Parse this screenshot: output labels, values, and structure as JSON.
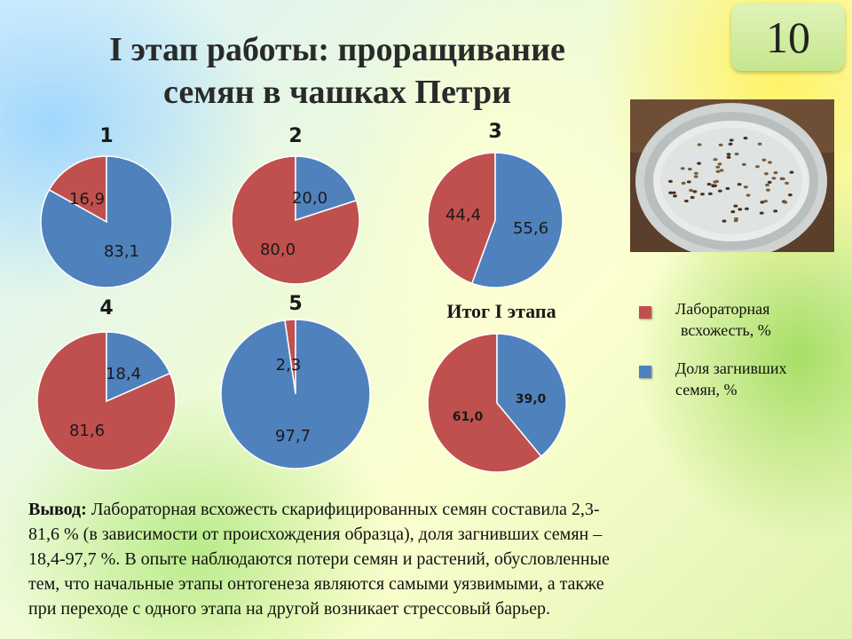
{
  "slide": {
    "title_line1": "I этап работы: проращивание",
    "title_line2": "семян в чашках Петри",
    "number": "10",
    "legend": [
      {
        "label_line1": "Лабораторная",
        "label_line2": "всхожесть, %",
        "color": "#c0504d"
      },
      {
        "label_line1": "Доля загнивших",
        "label_line2": "семян, %",
        "color": "#4f81bd"
      }
    ],
    "conclusion_label": "Вывод:",
    "conclusion_line1": "Лабораторная всхожесть скарифицированных семян составила 2,3-",
    "conclusion_line2": "81,6 % (в зависимости от происхождения образца), доля загнивших семян –",
    "conclusion_line3": "18,4-97,7 %. В опыте наблюдаются потери семян и растений, обусловленные",
    "conclusion_line4": "тем, что начальные этапы онтогенеза являются самыми уязвимыми, а также",
    "conclusion_line5": "при переходе с одного этапа на другой возникает стрессовый барьер."
  },
  "chart_data": [
    {
      "type": "pie",
      "title": "1",
      "categories": [
        "Лабораторная всхожесть, %",
        "Доля загнивших семян, %"
      ],
      "values": [
        16.9,
        83.1
      ],
      "labels": [
        "16,9",
        "83,1"
      ],
      "colors": [
        "#c0504d",
        "#4f81bd"
      ]
    },
    {
      "type": "pie",
      "title": "2",
      "categories": [
        "Лабораторная всхожесть, %",
        "Доля загнивших семян, %"
      ],
      "values": [
        80.0,
        20.0
      ],
      "labels": [
        "80,0",
        "20,0"
      ],
      "colors": [
        "#c0504d",
        "#4f81bd"
      ]
    },
    {
      "type": "pie",
      "title": "3",
      "categories": [
        "Лабораторная всхожесть, %",
        "Доля загнивших семян, %"
      ],
      "values": [
        44.4,
        55.6
      ],
      "labels": [
        "44,4",
        "55,6"
      ],
      "colors": [
        "#c0504d",
        "#4f81bd"
      ]
    },
    {
      "type": "pie",
      "title": "4",
      "categories": [
        "Лабораторная всхожесть, %",
        "Доля загнивших семян, %"
      ],
      "values": [
        81.6,
        18.4
      ],
      "labels": [
        "81,6",
        "18,4"
      ],
      "colors": [
        "#c0504d",
        "#4f81bd"
      ]
    },
    {
      "type": "pie",
      "title": "5",
      "categories": [
        "Лабораторная всхожесть, %",
        "Доля загнивших семян, %"
      ],
      "values": [
        2.3,
        97.7
      ],
      "labels": [
        "2,3",
        "97,7"
      ],
      "colors": [
        "#c0504d",
        "#4f81bd"
      ]
    },
    {
      "type": "pie",
      "title": "Итог I этапа",
      "categories": [
        "Лабораторная всхожесть, %",
        "Доля загнивших семян, %"
      ],
      "values": [
        61.0,
        39.0
      ],
      "labels": [
        "61,0",
        "39,0"
      ],
      "colors": [
        "#c0504d",
        "#4f81bd"
      ]
    }
  ]
}
